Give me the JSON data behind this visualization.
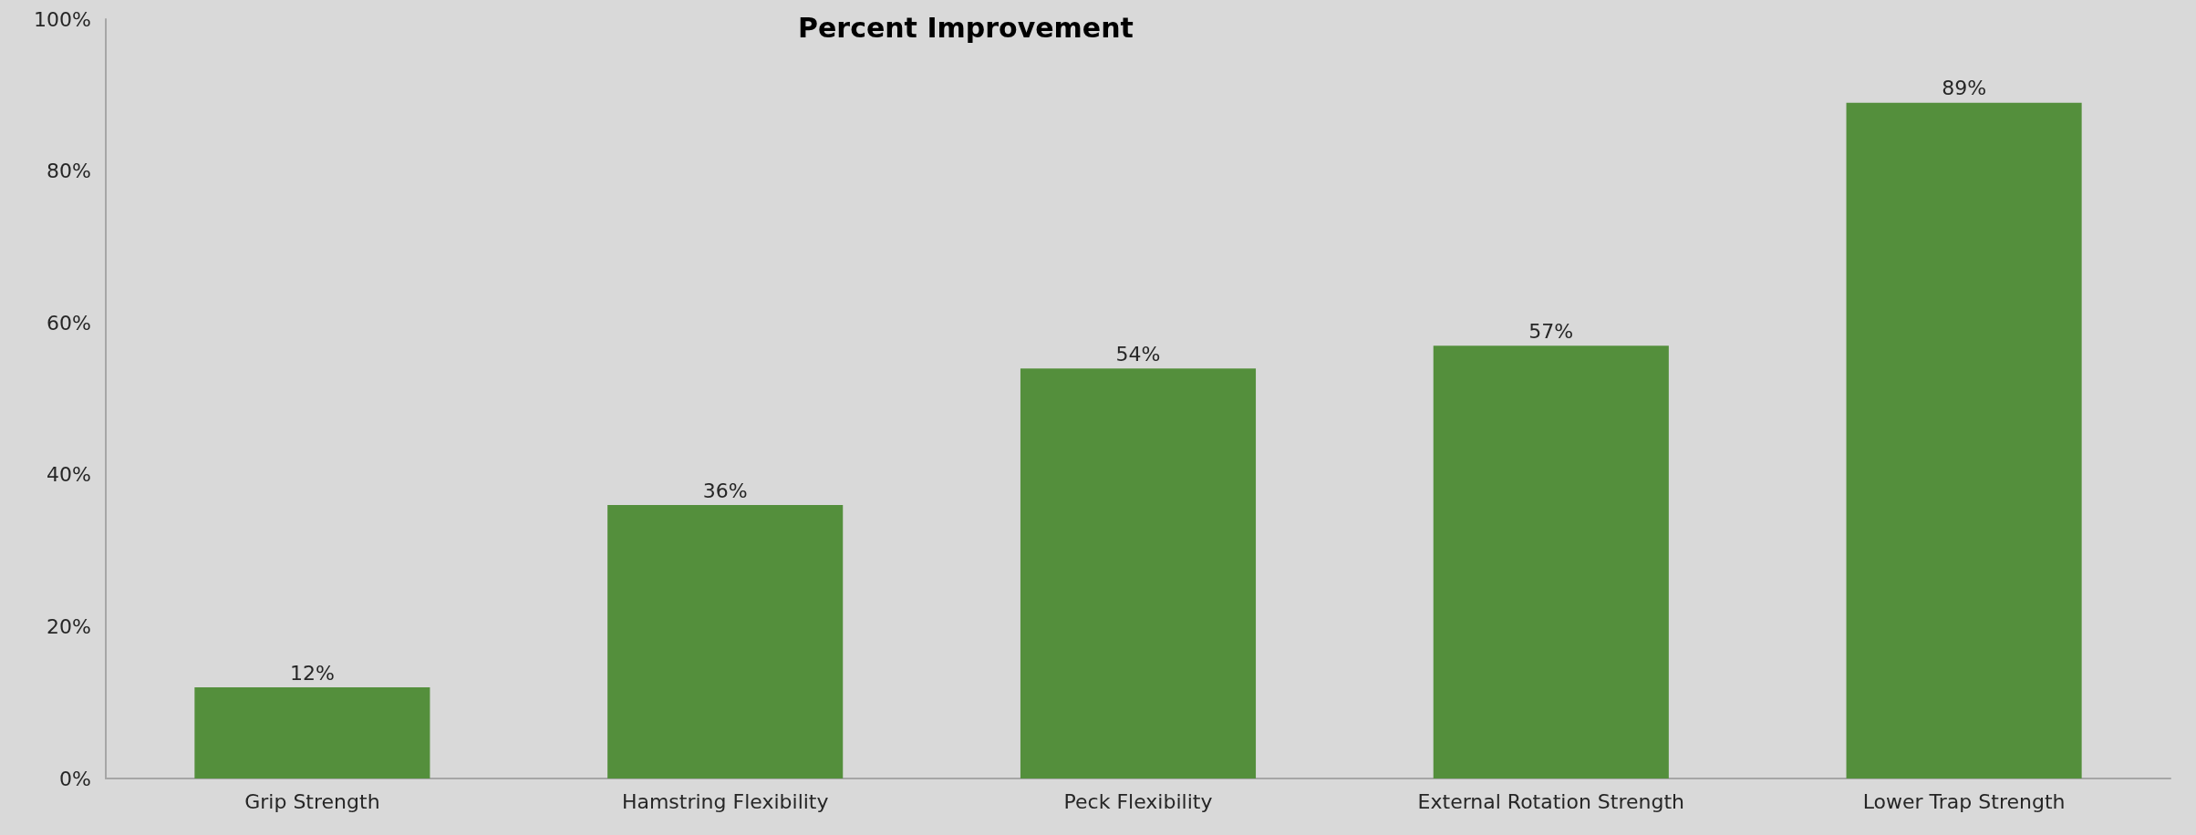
{
  "chart_data": {
    "type": "bar",
    "title": "Percent Improvement",
    "categories": [
      "Grip Strength",
      "Hamstring Flexibility",
      "Peck Flexibility",
      "External Rotation Strength",
      "Lower Trap Strength"
    ],
    "values": [
      12,
      36,
      54,
      57,
      89
    ],
    "value_labels": [
      "12%",
      "36%",
      "54%",
      "57%",
      "89%"
    ],
    "color": "#548f3c",
    "ylim": [
      0,
      100
    ],
    "yticks": [
      {
        "value": 0,
        "label": "0%"
      },
      {
        "value": 20,
        "label": "20%"
      },
      {
        "value": 40,
        "label": "40%"
      },
      {
        "value": 60,
        "label": "60%"
      },
      {
        "value": 80,
        "label": "80%"
      },
      {
        "value": 100,
        "label": "100%"
      }
    ],
    "grid": false
  }
}
